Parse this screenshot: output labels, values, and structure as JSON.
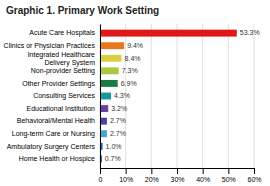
{
  "chart_data": {
    "type": "bar",
    "orientation": "horizontal",
    "title": "Graphic 1. Primary Work Setting",
    "categories": [
      "Home Health or Hospice",
      "Ambulatory Surgery Centers",
      "Long-term Care or Nursing",
      "Behavioral/Mental Health",
      "Educational Institution",
      "Consulting Services",
      "Other Provider Settings",
      "Non-provider Setting",
      "Integrated Healthcare\nDelivery System",
      "Clinics or Physician Practices",
      "Acute Care Hospitals"
    ],
    "values": [
      0.7,
      1.0,
      2.7,
      2.7,
      3.2,
      4.3,
      6.9,
      7.3,
      8.4,
      9.4,
      53.3
    ],
    "value_labels": [
      "0.7%",
      "1.0%",
      "2.7%",
      "2.7%",
      "3.2%",
      "4.3%",
      "6.9%",
      "7.3%",
      "8.4%",
      "9.4%",
      "53.3%"
    ],
    "colors": [
      "#1a3a7a",
      "#2060b0",
      "#40a8cc",
      "#4a44a0",
      "#7040a0",
      "#1899a0",
      "#1a7a40",
      "#aac840",
      "#d8d040",
      "#e87820",
      "#e01818"
    ],
    "data_labels": true,
    "xlim": [
      0,
      60
    ],
    "xticks": [
      0,
      {
        "value": 10,
        "label": "10%"
      },
      {
        "value": 20,
        "label": "20%"
      },
      {
        "value": 30,
        "label": "30%"
      },
      {
        "value": 40,
        "label": "40%"
      },
      {
        "value": 50,
        "label": "50%"
      },
      {
        "value": 60,
        "label": "60%"
      }
    ],
    "grid": true
  }
}
